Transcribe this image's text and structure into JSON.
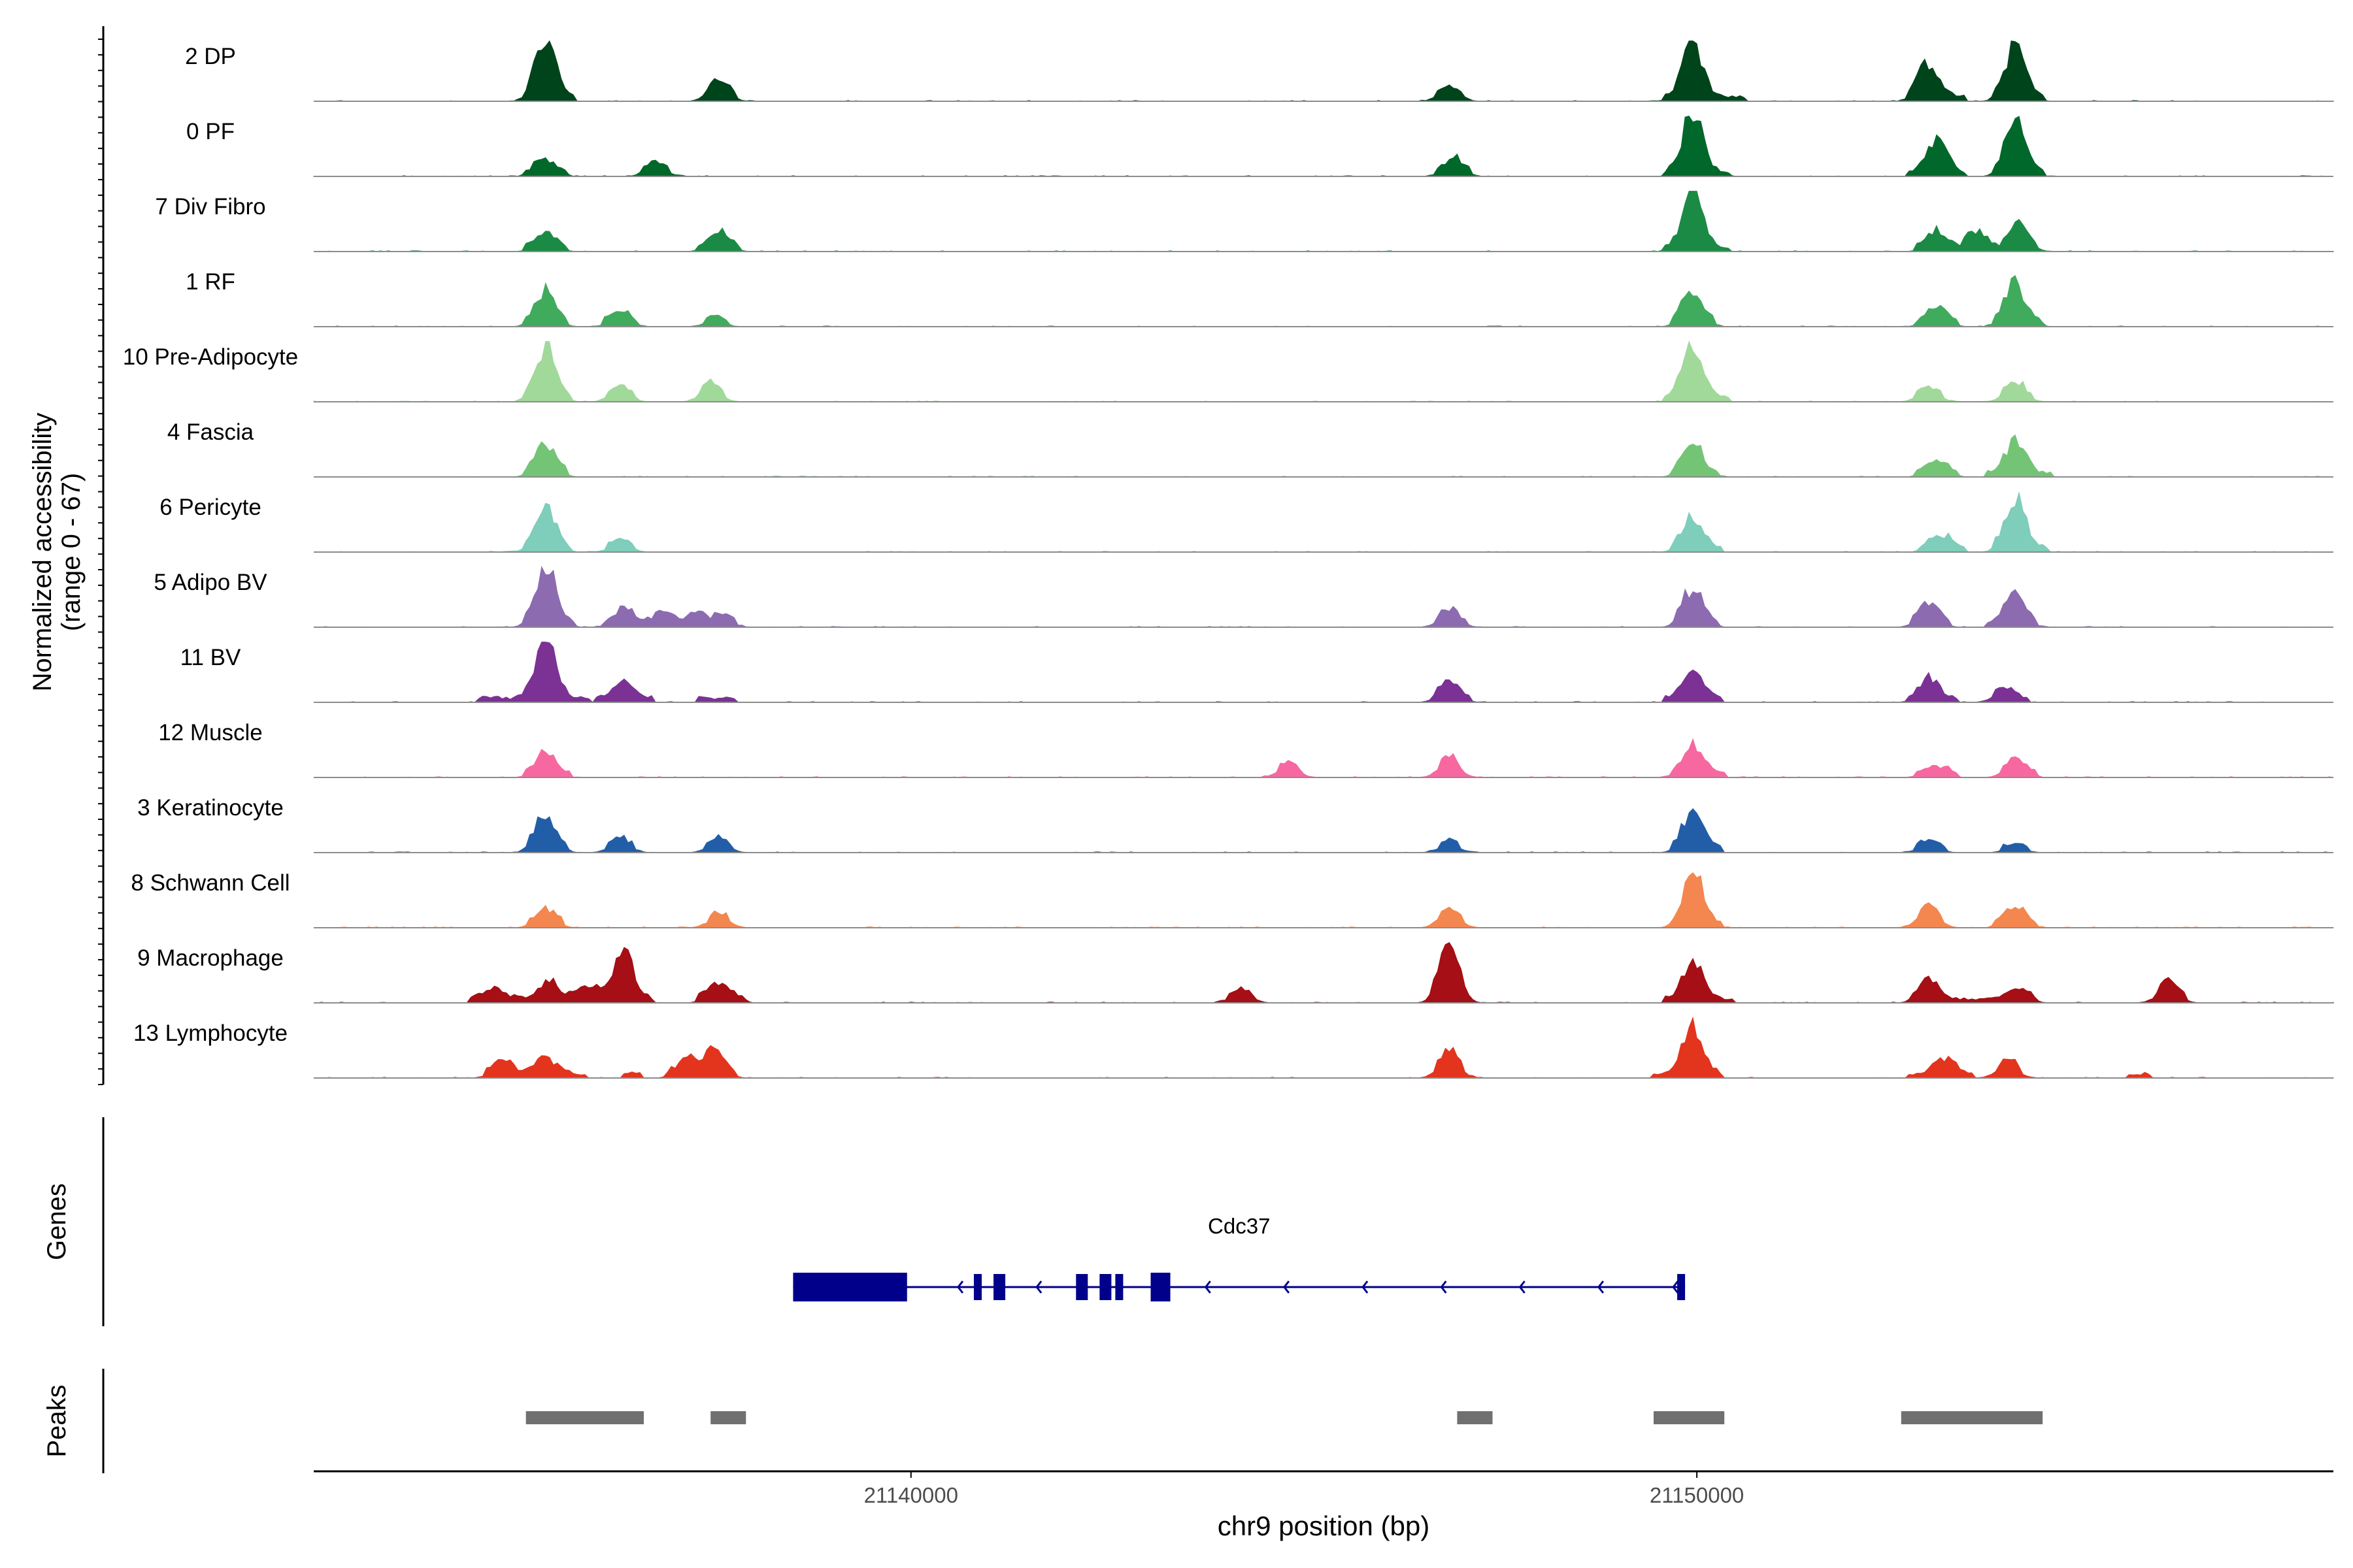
{
  "chart_data": {
    "type": "area",
    "x_label": "chr9 position (bp)",
    "x_ticks": [
      21140000,
      21150000
    ],
    "x_range": [
      21132400,
      21158100
    ],
    "coverage_panel": {
      "y_label_line1": "Normalized accessibility",
      "y_label_line2": "(range 0 - 67)",
      "y_range": [
        0,
        67
      ]
    },
    "tracks": [
      {
        "name": "2 DP",
        "color": "#00441b",
        "peaks": [
          [
            21135350,
            1.0
          ],
          [
            21137550,
            0.3
          ],
          [
            21146850,
            0.2
          ],
          [
            21149950,
            1.0
          ],
          [
            21152950,
            0.6
          ],
          [
            21154050,
            0.9
          ]
        ],
        "islands": [
          [
            21135100,
            21135700
          ],
          [
            21137400,
            21137750
          ],
          [
            21146700,
            21147000
          ],
          [
            21149600,
            21150600
          ],
          [
            21152700,
            21153400
          ],
          [
            21153800,
            21154400
          ]
        ]
      },
      {
        "name": "0 PF",
        "color": "#00682a",
        "peaks": [
          [
            21135350,
            0.25
          ],
          [
            21136750,
            0.2
          ],
          [
            21146900,
            0.25
          ],
          [
            21149950,
            1.0
          ],
          [
            21153050,
            0.55
          ],
          [
            21154050,
            0.85
          ]
        ],
        "islands": [
          [
            21135100,
            21135600
          ],
          [
            21136600,
            21136900
          ],
          [
            21146700,
            21147100
          ],
          [
            21149600,
            21150400
          ],
          [
            21152700,
            21153400
          ],
          [
            21153800,
            21154400
          ]
        ]
      },
      {
        "name": "7 Div Fibro",
        "color": "#1b8a45",
        "peaks": [
          [
            21135350,
            0.25
          ],
          [
            21137550,
            0.3
          ],
          [
            21149950,
            0.9
          ],
          [
            21153050,
            0.3
          ],
          [
            21153550,
            0.3
          ],
          [
            21154100,
            0.4
          ]
        ],
        "islands": [
          [
            21135100,
            21135600
          ],
          [
            21137300,
            21137800
          ],
          [
            21149600,
            21150400
          ],
          [
            21152800,
            21153300
          ],
          [
            21153400,
            21153800
          ],
          [
            21153900,
            21154300
          ]
        ]
      },
      {
        "name": "1 RF",
        "color": "#41ab5d",
        "peaks": [
          [
            21135350,
            0.55
          ],
          [
            21136300,
            0.2
          ],
          [
            21137500,
            0.1
          ],
          [
            21149950,
            0.55
          ],
          [
            21153050,
            0.3
          ],
          [
            21154050,
            0.7
          ]
        ],
        "islands": [
          [
            21135100,
            21135600
          ],
          [
            21136100,
            21136500
          ],
          [
            21137400,
            21137650
          ],
          [
            21149700,
            21150200
          ],
          [
            21152800,
            21153300
          ],
          [
            21153800,
            21154400
          ]
        ]
      },
      {
        "name": "10 Pre-Adipocyte",
        "color": "#a1d99b",
        "peaks": [
          [
            21135350,
            0.9
          ],
          [
            21136300,
            0.2
          ],
          [
            21137450,
            0.25
          ],
          [
            21149950,
            1.0
          ],
          [
            21152950,
            0.2
          ],
          [
            21154050,
            0.3
          ]
        ],
        "islands": [
          [
            21135100,
            21135650
          ],
          [
            21136150,
            21136450
          ],
          [
            21137350,
            21137600
          ],
          [
            21149600,
            21150400
          ],
          [
            21152800,
            21153100
          ],
          [
            21153900,
            21154250
          ]
        ]
      },
      {
        "name": "4 Fascia",
        "color": "#74c476",
        "peaks": [
          [
            21135350,
            0.5
          ],
          [
            21149950,
            0.5
          ],
          [
            21153050,
            0.25
          ],
          [
            21154050,
            0.55
          ]
        ],
        "islands": [
          [
            21135100,
            21135600
          ],
          [
            21149700,
            21150250
          ],
          [
            21152800,
            21153300
          ],
          [
            21153700,
            21154500
          ]
        ]
      },
      {
        "name": "6 Pericyte",
        "color": "#7fcdbb",
        "peaks": [
          [
            21135350,
            0.75
          ],
          [
            21136300,
            0.15
          ],
          [
            21149950,
            0.55
          ],
          [
            21153100,
            0.25
          ],
          [
            21154050,
            0.9
          ]
        ],
        "islands": [
          [
            21135100,
            21135650
          ],
          [
            21136150,
            21136450
          ],
          [
            21149700,
            21150300
          ],
          [
            21152850,
            21153400
          ],
          [
            21153800,
            21154450
          ]
        ]
      },
      {
        "name": "5 Adipo BV",
        "color": "#8c6bb1",
        "peaks": [
          [
            21135350,
            1.0
          ],
          [
            21136350,
            0.25
          ],
          [
            21136850,
            0.2
          ],
          [
            21137250,
            0.2
          ],
          [
            21137600,
            0.15
          ],
          [
            21146850,
            0.25
          ],
          [
            21149950,
            0.6
          ],
          [
            21152950,
            0.35
          ],
          [
            21154050,
            0.5
          ]
        ],
        "islands": [
          [
            21135100,
            21135700
          ],
          [
            21136100,
            21136650
          ],
          [
            21136700,
            21137050
          ],
          [
            21137150,
            21137400
          ],
          [
            21137500,
            21137750
          ],
          [
            21146700,
            21147050
          ],
          [
            21149750,
            21150250
          ],
          [
            21152750,
            21153200
          ],
          [
            21153700,
            21154300
          ]
        ]
      },
      {
        "name": "11 BV",
        "color": "#7b3294",
        "peaks": [
          [
            21135350,
            1.0
          ],
          [
            21136350,
            0.3
          ],
          [
            21146850,
            0.3
          ],
          [
            21149950,
            0.55
          ],
          [
            21152950,
            0.35
          ],
          [
            21153900,
            0.2
          ]
        ],
        "islands": [
          [
            21134500,
            21135900
          ],
          [
            21136000,
            21136700
          ],
          [
            21137300,
            21137750
          ],
          [
            21146650,
            21147100
          ],
          [
            21149600,
            21150300
          ],
          [
            21152700,
            21153300
          ],
          [
            21153800,
            21154200
          ]
        ]
      },
      {
        "name": "12 Muscle",
        "color": "#f768a1",
        "peaks": [
          [
            21135350,
            0.35
          ],
          [
            21144800,
            0.2
          ],
          [
            21146850,
            0.3
          ],
          [
            21149950,
            0.5
          ],
          [
            21153050,
            0.15
          ],
          [
            21154050,
            0.25
          ]
        ],
        "islands": [
          [
            21135100,
            21135650
          ],
          [
            21144700,
            21144950
          ],
          [
            21146750,
            21146950
          ],
          [
            21149700,
            21150350
          ],
          [
            21152800,
            21153300
          ],
          [
            21153900,
            21154300
          ]
        ]
      },
      {
        "name": "3 Keratinocyte",
        "color": "#225ea8",
        "peaks": [
          [
            21135350,
            0.6
          ],
          [
            21136300,
            0.2
          ],
          [
            21137550,
            0.2
          ],
          [
            21146850,
            0.15
          ],
          [
            21149950,
            0.7
          ],
          [
            21152950,
            0.15
          ],
          [
            21154050,
            0.1
          ]
        ],
        "islands": [
          [
            21135150,
            21135600
          ],
          [
            21136150,
            21136450
          ],
          [
            21137400,
            21137700
          ],
          [
            21146750,
            21146950
          ],
          [
            21149700,
            21150300
          ],
          [
            21152800,
            21153150
          ],
          [
            21153900,
            21154200
          ]
        ]
      },
      {
        "name": "8 Schwann Cell",
        "color": "#f4874f",
        "peaks": [
          [
            21135350,
            0.25
          ],
          [
            21137550,
            0.2
          ],
          [
            21146850,
            0.3
          ],
          [
            21149950,
            0.9
          ],
          [
            21152950,
            0.3
          ],
          [
            21154050,
            0.3
          ]
        ],
        "islands": [
          [
            21135150,
            21135550
          ],
          [
            21137450,
            21137650
          ],
          [
            21146750,
            21147000
          ],
          [
            21149750,
            21150300
          ],
          [
            21152850,
            21153100
          ],
          [
            21153800,
            21154300
          ]
        ]
      },
      {
        "name": "9 Macrophage",
        "color": "#a50f15",
        "peaks": [
          [
            21134700,
            0.2
          ],
          [
            21135400,
            0.3
          ],
          [
            21135900,
            0.25
          ],
          [
            21136350,
            0.75
          ],
          [
            21137550,
            0.3
          ],
          [
            21144200,
            0.2
          ],
          [
            21146850,
            0.85
          ],
          [
            21149950,
            0.65
          ],
          [
            21152950,
            0.35
          ],
          [
            21154100,
            0.2
          ],
          [
            21156000,
            0.3
          ]
        ],
        "islands": [
          [
            21134400,
            21136700
          ],
          [
            21137300,
            21137900
          ],
          [
            21144050,
            21144350
          ],
          [
            21146650,
            21147050
          ],
          [
            21149600,
            21150450
          ],
          [
            21152750,
            21154300
          ],
          [
            21155850,
            21156200
          ]
        ]
      },
      {
        "name": "13 Lymphocyte",
        "color": "#e3341e",
        "peaks": [
          [
            21134800,
            0.25
          ],
          [
            21135350,
            0.35
          ],
          [
            21137150,
            0.3
          ],
          [
            21137500,
            0.4
          ],
          [
            21146850,
            0.4
          ],
          [
            21149950,
            0.85
          ],
          [
            21153150,
            0.3
          ],
          [
            21153950,
            0.25
          ]
        ],
        "islands": [
          [
            21134600,
            21135400
          ],
          [
            21135500,
            21135850
          ],
          [
            21136350,
            21136550
          ],
          [
            21136900,
            21137750
          ],
          [
            21146700,
            21147000
          ],
          [
            21149450,
            21150300
          ],
          [
            21152700,
            21153500
          ],
          [
            21153850,
            21154100
          ],
          [
            21155500,
            21155750
          ]
        ]
      }
    ],
    "genes_panel": {
      "y_label": "Genes",
      "gene_name": "Cdc37",
      "strand": "-",
      "line_range": [
        21138500,
        21149850
      ],
      "exons": [
        [
          21138500,
          21139950
        ],
        [
          21140800,
          21140900
        ],
        [
          21141050,
          21141200
        ],
        [
          21142100,
          21142250
        ],
        [
          21142400,
          21142550
        ],
        [
          21142600,
          21142700
        ],
        [
          21143050,
          21143300
        ],
        [
          21149750,
          21149850
        ]
      ],
      "arrow_positions": [
        21143750,
        21144750,
        21145750,
        21146750,
        21147750,
        21148750,
        21149700,
        21140600,
        21141600
      ]
    },
    "peaks_panel": {
      "y_label": "Peaks",
      "color": "#707070",
      "intervals": [
        [
          21135100,
          21136600
        ],
        [
          21137450,
          21137900
        ],
        [
          21146950,
          21147400
        ],
        [
          21149450,
          21150350
        ],
        [
          21152600,
          21154400
        ]
      ]
    }
  }
}
